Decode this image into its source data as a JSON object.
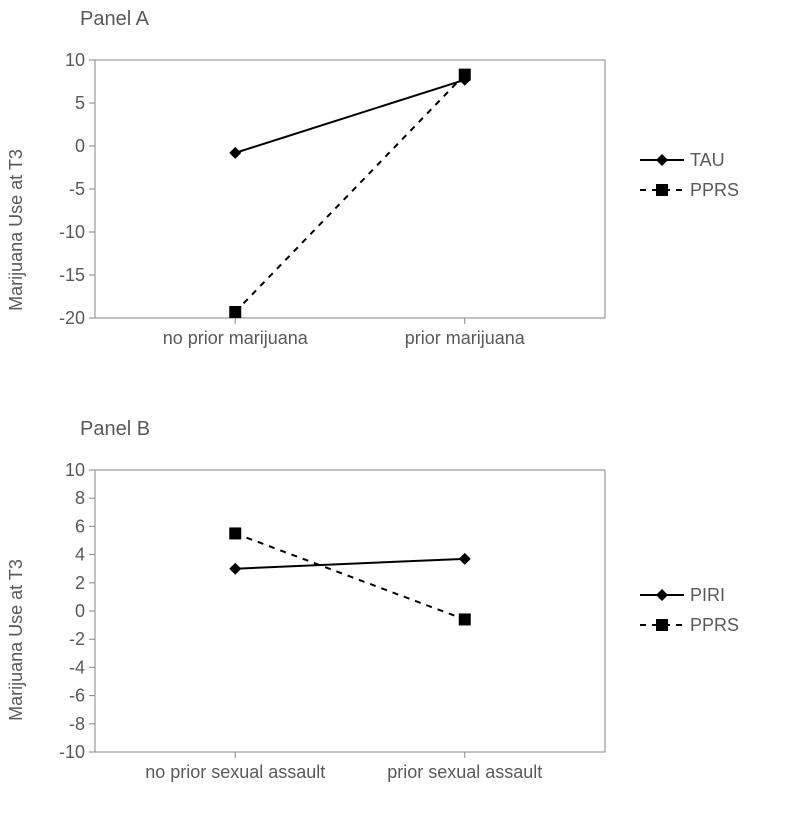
{
  "panelA": {
    "title": "Panel A",
    "type": "line",
    "ylabel": "Marijuana Use at T3",
    "ylim": [
      -20,
      10
    ],
    "ytick_step": 5,
    "categories": [
      "no prior marijuana",
      "prior marijuana"
    ],
    "series": [
      {
        "name": "TAU",
        "values": [
          -0.8,
          7.7
        ],
        "dash": "",
        "marker": "diamond",
        "color": "#000000"
      },
      {
        "name": "PPRS",
        "values": [
          -19.3,
          8.3
        ],
        "dash": "6,6",
        "marker": "square",
        "color": "#000000"
      }
    ],
    "background_color": "#ffffff",
    "axis_color": "#868686",
    "tick_color": "#868686",
    "text_color": "#595959",
    "line_width": 2,
    "marker_size": 6,
    "label_fontsize": 18,
    "title_fontsize": 20
  },
  "panelB": {
    "title": "Panel B",
    "type": "line",
    "ylabel": "Marijuana Use at T3",
    "ylim": [
      -10,
      10
    ],
    "ytick_step": 2,
    "categories": [
      "no prior sexual assault",
      "prior sexual assault"
    ],
    "series": [
      {
        "name": "PIRI",
        "values": [
          3.0,
          3.7
        ],
        "dash": "",
        "marker": "diamond",
        "color": "#000000"
      },
      {
        "name": "PPRS",
        "values": [
          5.5,
          -0.6
        ],
        "dash": "6,6",
        "marker": "square",
        "color": "#000000"
      }
    ],
    "background_color": "#ffffff",
    "axis_color": "#868686",
    "tick_color": "#868686",
    "text_color": "#595959",
    "line_width": 2,
    "marker_size": 6,
    "label_fontsize": 18,
    "title_fontsize": 20
  }
}
